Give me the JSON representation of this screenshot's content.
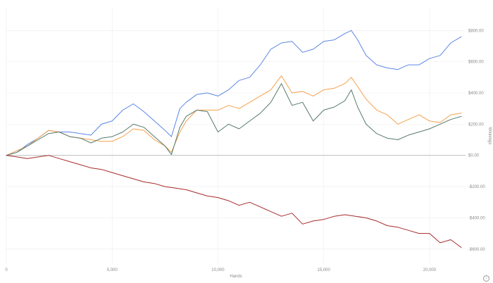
{
  "chart_data": {
    "type": "line",
    "title": "",
    "xlabel": "Hands",
    "ylabel": "Winnings",
    "xlim": [
      0,
      21700
    ],
    "ylim": [
      -700,
      950
    ],
    "grid": true,
    "legend": "none",
    "x_ticks": [
      0,
      5000,
      10000,
      15000,
      20000
    ],
    "x_tick_labels": [
      "0",
      "5,000",
      "10,000",
      "15,000",
      "20,000"
    ],
    "y_ticks": [
      -600,
      -400,
      -200,
      0,
      200,
      400,
      600,
      800
    ],
    "y_tick_labels": [
      "-$600.00",
      "-$400.00",
      "-$200.00",
      "$0.00",
      "$200.00",
      "$400.00",
      "$600.00",
      "$800.00"
    ],
    "series": [
      {
        "color": "#5b86e5",
        "x": [
          0,
          500,
          1000,
          1500,
          2000,
          2500,
          3000,
          3500,
          4000,
          4500,
          5000,
          5500,
          6000,
          6500,
          7000,
          7500,
          7800,
          8200,
          8500,
          9000,
          9500,
          10000,
          10500,
          11000,
          11500,
          12000,
          12500,
          13000,
          13500,
          14000,
          14500,
          15000,
          15500,
          16000,
          16300,
          16600,
          17000,
          17500,
          18000,
          18500,
          19000,
          19500,
          20000,
          20500,
          21000,
          21500
        ],
        "values": [
          0,
          20,
          70,
          110,
          160,
          150,
          150,
          140,
          130,
          200,
          220,
          290,
          330,
          280,
          220,
          160,
          120,
          300,
          340,
          390,
          400,
          380,
          420,
          480,
          500,
          580,
          680,
          720,
          730,
          660,
          680,
          730,
          740,
          780,
          800,
          740,
          640,
          580,
          560,
          550,
          580,
          580,
          620,
          640,
          720,
          760
        ]
      },
      {
        "color": "#f5a04c",
        "x": [
          0,
          500,
          1000,
          1500,
          2000,
          2500,
          3000,
          3500,
          4000,
          4500,
          5000,
          5500,
          6000,
          6500,
          7000,
          7500,
          7800,
          8200,
          8500,
          9000,
          9500,
          10000,
          10500,
          11000,
          11500,
          12000,
          12500,
          13000,
          13500,
          14000,
          14500,
          15000,
          15500,
          16000,
          16300,
          16600,
          17000,
          17500,
          18000,
          18500,
          19000,
          19500,
          20000,
          20500,
          21000,
          21500
        ],
        "values": [
          0,
          30,
          60,
          110,
          160,
          150,
          120,
          110,
          100,
          90,
          90,
          120,
          170,
          160,
          100,
          60,
          20,
          150,
          220,
          290,
          290,
          290,
          320,
          300,
          340,
          380,
          420,
          510,
          400,
          410,
          380,
          420,
          430,
          460,
          500,
          440,
          360,
          290,
          260,
          200,
          230,
          260,
          220,
          210,
          260,
          270
        ]
      },
      {
        "color": "#557a6a",
        "x": [
          0,
          500,
          1000,
          1500,
          2000,
          2500,
          3000,
          3500,
          4000,
          4500,
          5000,
          5500,
          6000,
          6500,
          7000,
          7500,
          7800,
          8200,
          8500,
          9000,
          9500,
          10000,
          10500,
          11000,
          11500,
          12000,
          12500,
          13000,
          13500,
          14000,
          14500,
          15000,
          15500,
          16000,
          16300,
          16600,
          17000,
          17500,
          18000,
          18500,
          19000,
          19500,
          20000,
          20500,
          21000,
          21500
        ],
        "values": [
          0,
          20,
          60,
          100,
          140,
          150,
          120,
          110,
          80,
          110,
          120,
          150,
          200,
          180,
          120,
          60,
          5,
          180,
          250,
          290,
          280,
          150,
          200,
          170,
          220,
          270,
          340,
          460,
          320,
          340,
          220,
          290,
          310,
          350,
          420,
          310,
          200,
          140,
          110,
          100,
          130,
          150,
          170,
          200,
          230,
          250
        ]
      },
      {
        "color": "#a52a2a",
        "x": [
          0,
          500,
          1000,
          1500,
          2000,
          2500,
          3000,
          3500,
          4000,
          4500,
          5000,
          5500,
          6000,
          6500,
          7000,
          7500,
          8000,
          8500,
          9000,
          9500,
          10000,
          10500,
          11000,
          11500,
          12000,
          12500,
          13000,
          13500,
          14000,
          14500,
          15000,
          15500,
          16000,
          16500,
          17000,
          17500,
          18000,
          18500,
          19000,
          19500,
          20000,
          20500,
          21000,
          21500
        ],
        "values": [
          0,
          -10,
          -20,
          -10,
          0,
          -20,
          -40,
          -60,
          -80,
          -90,
          -110,
          -130,
          -150,
          -170,
          -180,
          -200,
          -210,
          -220,
          -240,
          -260,
          -270,
          -290,
          -320,
          -300,
          -330,
          -360,
          -390,
          -370,
          -440,
          -420,
          -410,
          -390,
          -380,
          -390,
          -400,
          -420,
          -450,
          -460,
          -480,
          -500,
          -500,
          -560,
          -540,
          -590
        ]
      }
    ]
  }
}
